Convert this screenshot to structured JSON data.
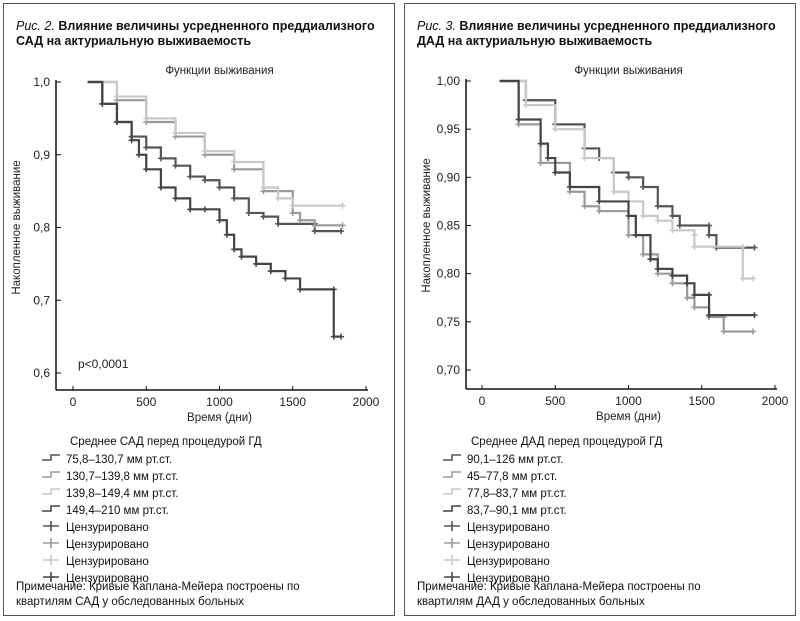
{
  "figures": [
    {
      "fig_label": "Рис. 2.",
      "title": "Влияние величины усредненного преддиализного САД на актуриальную выживаемость",
      "legend_title": "Среднее САД перед процедурой ГД",
      "legend": [
        "75,8–130,7 мм рт.ст.",
        "130,7–139,8 мм рт.ст.",
        "139,8–149,4 мм рт.ст.",
        "149,4–210 мм рт.ст.",
        "Цензурировано",
        "Цензурировано",
        "Цензурировано",
        "Цензурировано"
      ],
      "note": [
        "Примечание: Кривые Каплана-Мейера построены по",
        "квартилям САД у обследованных больных"
      ]
    },
    {
      "fig_label": "Рис. 3.",
      "title": "Влияние величины усредненного преддиализного ДАД на актуриальную выживаемость",
      "legend_title": "Среднее ДАД перед процедурой ГД",
      "legend": [
        "90,1–126 мм рт.ст.",
        "45–77,8 мм рт.ст.",
        "77,8–83,7 мм рт.ст.",
        "83,7–90,1 мм рт.ст.",
        "Цензурировано",
        "Цензурировано",
        "Цензурировано",
        "Цензурировано"
      ],
      "note": [
        "Примечание: Кривые Каплана-Мейера построены по",
        "квартилям ДАД у обследованных больных"
      ]
    }
  ],
  "chart_data": [
    {
      "type": "line",
      "title": "Функции выживания",
      "xlabel": "Время (дни)",
      "ylabel": "Накопленное выживание",
      "xlim": [
        0,
        2000
      ],
      "ylim": [
        0.6,
        1.0
      ],
      "xticks": [
        "0",
        "500",
        "1000",
        "1500",
        "2000"
      ],
      "yticks": [
        "1,0",
        "0,9",
        "0,8",
        "0,7",
        "0,6"
      ],
      "annotation": "p<0,0001",
      "legend_placement": "below",
      "grid": false,
      "series": [
        {
          "name": "75,8–130,7 мм рт.ст.",
          "color": "#555555",
          "points": [
            [
              100,
              1
            ],
            [
              200,
              0.97
            ],
            [
              300,
              0.945
            ],
            [
              400,
              0.925
            ],
            [
              500,
              0.91
            ],
            [
              600,
              0.895
            ],
            [
              700,
              0.885
            ],
            [
              800,
              0.87
            ],
            [
              900,
              0.865
            ],
            [
              1000,
              0.855
            ],
            [
              1100,
              0.84
            ],
            [
              1200,
              0.82
            ],
            [
              1300,
              0.815
            ],
            [
              1400,
              0.805
            ],
            [
              1650,
              0.805
            ],
            [
              1650,
              0.795
            ],
            [
              1830,
              0.795
            ]
          ]
        },
        {
          "name": "130,7–139,8 мм рт.ст.",
          "color": "#9a9a9a",
          "points": [
            [
              100,
              1
            ],
            [
              300,
              0.975
            ],
            [
              500,
              0.945
            ],
            [
              700,
              0.925
            ],
            [
              900,
              0.9
            ],
            [
              1100,
              0.88
            ],
            [
              1300,
              0.85
            ],
            [
              1500,
              0.82
            ],
            [
              1550,
              0.81
            ],
            [
              1650,
              0.803
            ],
            [
              1840,
              0.803
            ]
          ]
        },
        {
          "name": "139,8–149,4 мм рт.ст.",
          "color": "#c8c8c8",
          "points": [
            [
              100,
              1
            ],
            [
              300,
              0.98
            ],
            [
              500,
              0.95
            ],
            [
              700,
              0.93
            ],
            [
              900,
              0.905
            ],
            [
              1100,
              0.89
            ],
            [
              1300,
              0.855
            ],
            [
              1400,
              0.84
            ],
            [
              1500,
              0.83
            ],
            [
              1840,
              0.83
            ]
          ]
        },
        {
          "name": "149,4–210 мм рт.ст.",
          "color": "#444444",
          "points": [
            [
              100,
              1
            ],
            [
              200,
              0.97
            ],
            [
              300,
              0.945
            ],
            [
              400,
              0.92
            ],
            [
              450,
              0.9
            ],
            [
              500,
              0.88
            ],
            [
              600,
              0.855
            ],
            [
              700,
              0.84
            ],
            [
              800,
              0.825
            ],
            [
              900,
              0.825
            ],
            [
              1000,
              0.81
            ],
            [
              1050,
              0.79
            ],
            [
              1100,
              0.77
            ],
            [
              1150,
              0.76
            ],
            [
              1250,
              0.75
            ],
            [
              1350,
              0.74
            ],
            [
              1450,
              0.73
            ],
            [
              1550,
              0.715
            ],
            [
              1780,
              0.715
            ],
            [
              1780,
              0.65
            ],
            [
              1830,
              0.65
            ]
          ]
        }
      ]
    },
    {
      "type": "line",
      "title": "Функции выживания",
      "xlabel": "Время (дни)",
      "ylabel": "Накопленное выживание",
      "xlim": [
        0,
        2000
      ],
      "ylim": [
        0.7,
        1.0
      ],
      "xticks": [
        "0",
        "500",
        "1000",
        "1500",
        "2000"
      ],
      "yticks": [
        "1,00",
        "0,95",
        "0,90",
        "0,85",
        "0,80",
        "0,75",
        "0,70"
      ],
      "legend_placement": "below",
      "grid": false,
      "series": [
        {
          "name": "90,1–126 мм рт.ст.",
          "color": "#555555",
          "points": [
            [
              130,
              1
            ],
            [
              300,
              0.98
            ],
            [
              500,
              0.955
            ],
            [
              700,
              0.93
            ],
            [
              800,
              0.92
            ],
            [
              900,
              0.905
            ],
            [
              1000,
              0.9
            ],
            [
              1100,
              0.89
            ],
            [
              1200,
              0.87
            ],
            [
              1300,
              0.86
            ],
            [
              1350,
              0.85
            ],
            [
              1550,
              0.85
            ],
            [
              1550,
              0.84
            ],
            [
              1600,
              0.827
            ],
            [
              1860,
              0.827
            ]
          ]
        },
        {
          "name": "45–77,8 мм рт.ст.",
          "color": "#9a9a9a",
          "points": [
            [
              120,
              1
            ],
            [
              250,
              0.955
            ],
            [
              400,
              0.915
            ],
            [
              600,
              0.885
            ],
            [
              700,
              0.87
            ],
            [
              800,
              0.865
            ],
            [
              1000,
              0.84
            ],
            [
              1100,
              0.82
            ],
            [
              1200,
              0.8
            ],
            [
              1300,
              0.79
            ],
            [
              1400,
              0.775
            ],
            [
              1450,
              0.765
            ],
            [
              1550,
              0.755
            ],
            [
              1650,
              0.755
            ],
            [
              1650,
              0.74
            ],
            [
              1850,
              0.74
            ]
          ]
        },
        {
          "name": "77,8–83,7 мм рт.ст.",
          "color": "#c8c8c8",
          "points": [
            [
              120,
              1
            ],
            [
              300,
              0.975
            ],
            [
              500,
              0.95
            ],
            [
              700,
              0.92
            ],
            [
              900,
              0.885
            ],
            [
              1000,
              0.875
            ],
            [
              1100,
              0.86
            ],
            [
              1200,
              0.855
            ],
            [
              1300,
              0.845
            ],
            [
              1450,
              0.84
            ],
            [
              1450,
              0.828
            ],
            [
              1780,
              0.828
            ],
            [
              1780,
              0.795
            ],
            [
              1850,
              0.795
            ]
          ]
        },
        {
          "name": "83,7–90,1 мм рт.ст.",
          "color": "#444444",
          "points": [
            [
              120,
              1
            ],
            [
              250,
              0.96
            ],
            [
              400,
              0.935
            ],
            [
              450,
              0.92
            ],
            [
              500,
              0.905
            ],
            [
              600,
              0.89
            ],
            [
              800,
              0.875
            ],
            [
              1000,
              0.86
            ],
            [
              1050,
              0.84
            ],
            [
              1150,
              0.815
            ],
            [
              1200,
              0.805
            ],
            [
              1300,
              0.798
            ],
            [
              1400,
              0.79
            ],
            [
              1450,
              0.778
            ],
            [
              1550,
              0.778
            ],
            [
              1550,
              0.757
            ],
            [
              1860,
              0.757
            ]
          ]
        }
      ]
    }
  ]
}
